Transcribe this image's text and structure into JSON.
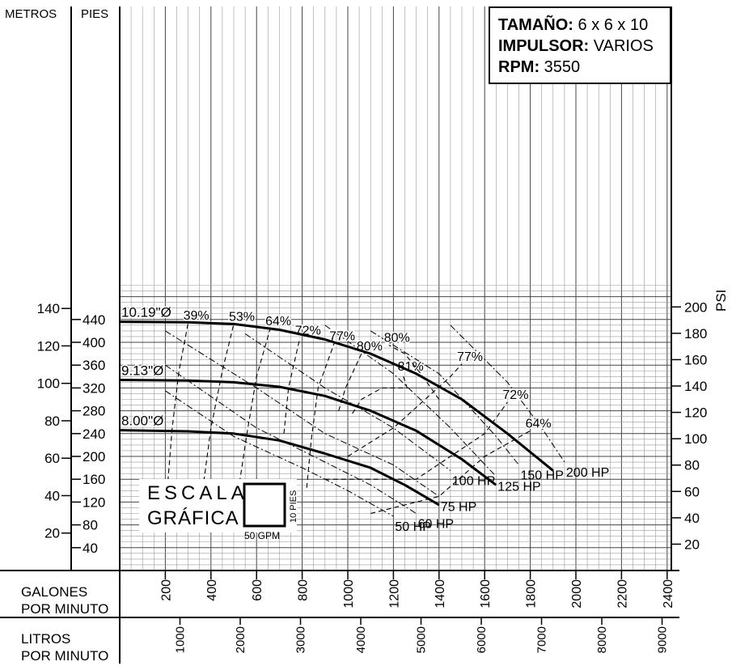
{
  "chart_data": {
    "type": "line",
    "axes": {
      "left_outer_unit": "METROS",
      "left_inner_unit": "PIES",
      "right_unit": "PSI",
      "x_bottom_unit_line1": "GALONES",
      "x_bottom_unit_line2": "POR MINUTO",
      "x_lower_unit_line1": "LITROS",
      "x_lower_unit_line2": "POR MINUTO",
      "metros_ticks": [
        "20",
        "40",
        "60",
        "80",
        "100",
        "120",
        "140"
      ],
      "pies_ticks": [
        "40",
        "80",
        "120",
        "160",
        "200",
        "240",
        "280",
        "320",
        "360",
        "400",
        "440"
      ],
      "psi_ticks": [
        "20",
        "40",
        "60",
        "80",
        "100",
        "120",
        "140",
        "160",
        "180",
        "200"
      ],
      "gpm_ticks": [
        "200",
        "400",
        "600",
        "800",
        "1000",
        "1200",
        "1400",
        "1600",
        "1800",
        "2000",
        "2200",
        "2400"
      ],
      "lpm_ticks": [
        "1000",
        "2000",
        "3000",
        "4000",
        "5000",
        "6000",
        "7000",
        "8000",
        "9000"
      ],
      "xlim_gpm": [
        0,
        2400
      ],
      "ylim_feet": [
        0,
        480
      ],
      "grid": true
    },
    "info": {
      "size_label": "TAMAÑO:",
      "size_value": "6 x 6 x 10",
      "impeller_label": "IMPULSOR:",
      "impeller_value": "VARIOS",
      "rpm_label": "RPM:",
      "rpm_value": "3550"
    },
    "impeller_curves": [
      {
        "label": "10.19\"Ø",
        "points": [
          [
            0,
            436
          ],
          [
            300,
            435
          ],
          [
            500,
            432
          ],
          [
            700,
            422
          ],
          [
            900,
            405
          ],
          [
            1100,
            380
          ],
          [
            1300,
            345
          ],
          [
            1500,
            300
          ],
          [
            1700,
            240
          ],
          [
            1900,
            175
          ]
        ]
      },
      {
        "label": "9.13\"Ø",
        "points": [
          [
            0,
            334
          ],
          [
            300,
            333
          ],
          [
            500,
            330
          ],
          [
            700,
            322
          ],
          [
            900,
            306
          ],
          [
            1100,
            280
          ],
          [
            1300,
            245
          ],
          [
            1500,
            195
          ],
          [
            1650,
            150
          ]
        ]
      },
      {
        "label": "8.00\"Ø",
        "points": [
          [
            0,
            246
          ],
          [
            300,
            244
          ],
          [
            500,
            240
          ],
          [
            700,
            228
          ],
          [
            900,
            205
          ],
          [
            1100,
            180
          ],
          [
            1250,
            150
          ],
          [
            1400,
            115
          ]
        ]
      }
    ],
    "efficiency_curves": [
      {
        "label": "39%",
        "points": [
          [
            200,
            100
          ],
          [
            230,
            250
          ],
          [
            260,
            350
          ],
          [
            300,
            434
          ]
        ]
      },
      {
        "label": "53%",
        "points": [
          [
            350,
            100
          ],
          [
            400,
            250
          ],
          [
            450,
            350
          ],
          [
            500,
            432
          ]
        ]
      },
      {
        "label": "64%",
        "points": [
          [
            520,
            140
          ],
          [
            560,
            245
          ],
          [
            600,
            340
          ],
          [
            660,
            424
          ]
        ]
      },
      {
        "label": "72%",
        "points": [
          [
            720,
            240
          ],
          [
            740,
            320
          ],
          [
            790,
            408
          ]
        ]
      },
      {
        "label": "77%",
        "points": [
          [
            820,
            145
          ],
          [
            840,
            230
          ],
          [
            870,
            320
          ],
          [
            940,
            398
          ]
        ]
      },
      {
        "label": "80%",
        "points": [
          [
            960,
            280
          ],
          [
            990,
            320
          ],
          [
            1060,
            380
          ]
        ]
      },
      {
        "label": "81%",
        "points": [
          [
            1020,
            275
          ],
          [
            1060,
            300
          ],
          [
            1150,
            320
          ],
          [
            1260,
            320
          ],
          [
            1240,
            345
          ]
        ]
      },
      {
        "label": "80%",
        "points": [
          [
            1400,
            300
          ],
          [
            1320,
            345
          ],
          [
            1250,
            380
          ],
          [
            1180,
            395
          ]
        ]
      },
      {
        "label": "77%",
        "points": [
          [
            1000,
            200
          ],
          [
            1200,
            250
          ],
          [
            1450,
            340
          ],
          [
            1500,
            362
          ]
        ]
      },
      {
        "label": "72%",
        "points": [
          [
            900,
            160
          ],
          [
            1300,
            160
          ],
          [
            1600,
            240
          ],
          [
            1700,
            295
          ]
        ]
      },
      {
        "label": "64%",
        "points": [
          [
            1100,
            100
          ],
          [
            1400,
            130
          ],
          [
            1600,
            200
          ],
          [
            1800,
            245
          ]
        ]
      }
    ],
    "power_curves": [
      {
        "label": "50 HP",
        "points": [
          [
            200,
            315
          ],
          [
            500,
            235
          ],
          [
            800,
            180
          ],
          [
            1000,
            140
          ],
          [
            1200,
            95
          ]
        ]
      },
      {
        "label": "60 HP",
        "points": [
          [
            200,
            360
          ],
          [
            600,
            250
          ],
          [
            900,
            190
          ],
          [
            1100,
            150
          ],
          [
            1300,
            100
          ]
        ]
      },
      {
        "label": "75 HP",
        "points": [
          [
            200,
            420
          ],
          [
            600,
            320
          ],
          [
            900,
            240
          ],
          [
            1200,
            185
          ],
          [
            1400,
            130
          ]
        ]
      },
      {
        "label": "100 HP",
        "points": [
          [
            550,
            415
          ],
          [
            900,
            320
          ],
          [
            1200,
            250
          ],
          [
            1450,
            175
          ]
        ]
      },
      {
        "label": "125 HP",
        "points": [
          [
            900,
            430
          ],
          [
            1200,
            345
          ],
          [
            1450,
            250
          ],
          [
            1650,
            165
          ]
        ]
      },
      {
        "label": "150 HP",
        "points": [
          [
            1100,
            420
          ],
          [
            1400,
            345
          ],
          [
            1650,
            235
          ],
          [
            1750,
            185
          ]
        ]
      },
      {
        "label": "200 HP",
        "points": [
          [
            1450,
            430
          ],
          [
            1700,
            330
          ],
          [
            1850,
            250
          ],
          [
            1950,
            190
          ]
        ]
      }
    ],
    "scale_legend": {
      "title_line1": "ESCALA",
      "title_line2": "GRÁFICA",
      "width_label": "50 GPM",
      "height_label": "10 PIES"
    }
  }
}
